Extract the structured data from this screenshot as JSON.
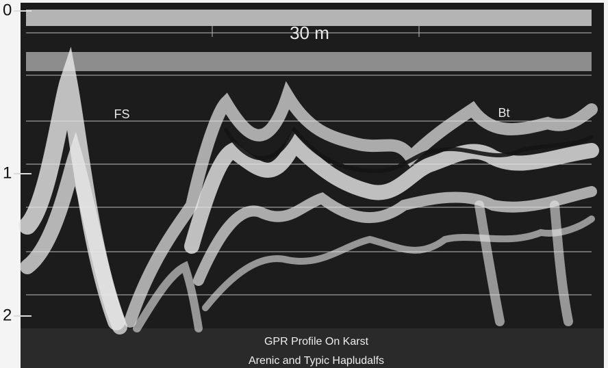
{
  "depth_labels": [
    "0",
    "1",
    "2"
  ],
  "scale_label": "30 m",
  "annotations": [
    "FS",
    "Bt"
  ],
  "caption": {
    "title": "GPR Profile On Karst",
    "subtitle": "Arenic and Typic Hapludalfs"
  }
}
